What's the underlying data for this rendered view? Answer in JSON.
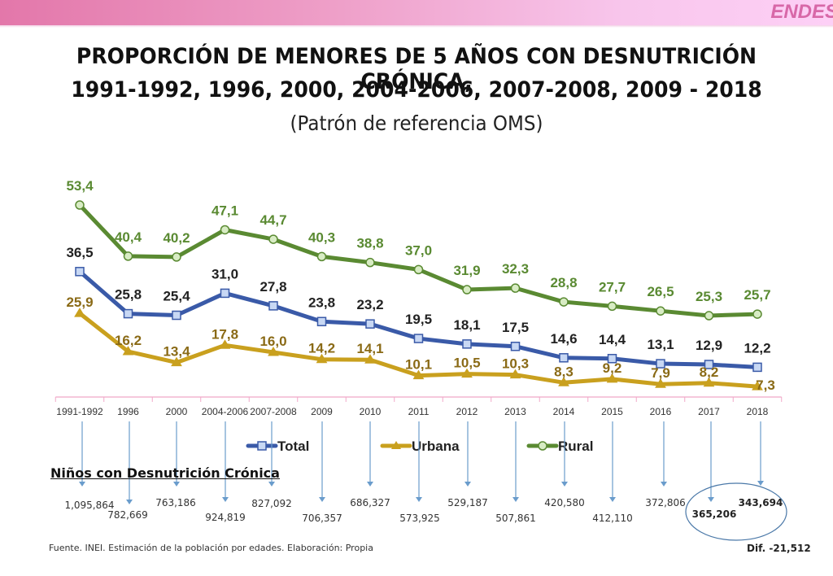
{
  "header": {
    "brand": "ENDES"
  },
  "title": {
    "line1": "PROPORCIÓN DE MENORES DE 5 AÑOS CON DESNUTRICIÓN CRÓNICA,",
    "line2": "1991-1992, 1996, 2000, 2004-2006, 2007-2008, 2009 - 2018",
    "subtitle": "(Patrón de referencia OMS)"
  },
  "colors": {
    "total": "#3a5aa8",
    "urbana": "#c9a01e",
    "rural": "#5a8a32",
    "total_label": "#222222",
    "urbana_label": "#8a6a16",
    "rural_label": "#5a8a32",
    "axis": "#f0a8c8",
    "arrow": "#6a9ccc"
  },
  "chart_data": {
    "type": "line",
    "title": "PROPORCIÓN DE MENORES DE 5 AÑOS CON DESNUTRICIÓN CRÓNICA, 1991-1992, 1996, 2000, 2004-2006, 2007-2008, 2009 - 2018",
    "subtitle": "(Patrón de referencia OMS)",
    "xlabel": "",
    "ylabel": "",
    "grid": false,
    "legend_position": "bottom",
    "categories": [
      "1991-1992",
      "1996",
      "2000",
      "2004-2006",
      "2007-2008",
      "2009",
      "2010",
      "2011",
      "2012",
      "2013",
      "2014",
      "2015",
      "2016",
      "2017",
      "2018"
    ],
    "series": [
      {
        "name": "Total",
        "marker": "square",
        "labels": [
          "36,5",
          "25,8",
          "25,4",
          "31,0",
          "27,8",
          "23,8",
          "23,2",
          "19,5",
          "18,1",
          "17,5",
          "14,6",
          "14,4",
          "13,1",
          "12,9",
          "12,2"
        ],
        "values": [
          36.5,
          25.8,
          25.4,
          31.0,
          27.8,
          23.8,
          23.2,
          19.5,
          18.1,
          17.5,
          14.6,
          14.4,
          13.1,
          12.9,
          12.2
        ]
      },
      {
        "name": "Urbana",
        "marker": "triangle",
        "labels": [
          "25,9",
          "16,2",
          "13,4",
          "17,8",
          "16,0",
          "14,2",
          "14,1",
          "10,1",
          "10,5",
          "10,3",
          "8,3",
          "9,2",
          "7,9",
          "8,2",
          "7,3"
        ],
        "values": [
          25.9,
          16.2,
          13.4,
          17.8,
          16.0,
          14.2,
          14.1,
          10.1,
          10.5,
          10.3,
          8.3,
          9.2,
          7.9,
          8.2,
          7.3
        ]
      },
      {
        "name": "Rural",
        "marker": "circle",
        "labels": [
          "53,4",
          "40,4",
          "40,2",
          "47,1",
          "44,7",
          "40,3",
          "38,8",
          "37,0",
          "31,9",
          "32,3",
          "28,8",
          "27,7",
          "26,5",
          "25,3",
          "25,7"
        ],
        "values": [
          53.4,
          40.4,
          40.2,
          47.1,
          44.7,
          40.3,
          38.8,
          37.0,
          31.9,
          32.3,
          28.8,
          27.7,
          26.5,
          25.3,
          25.7
        ]
      }
    ]
  },
  "children": {
    "section_title": "Niños con Desnutrición Crónica",
    "counts": [
      "1,095,864",
      "782,669",
      "763,186",
      "924,819",
      "827,092",
      "706,357",
      "686,327",
      "573,925",
      "529,187",
      "507,861",
      "420,580",
      "412,110",
      "372,806",
      "365,206",
      "343,694"
    ],
    "highlighted": [
      13,
      14
    ],
    "difference": "Dif. -21,512"
  },
  "footer": {
    "source": "Fuente. INEI. Estimación de la población por edades.    Elaboración: Propia"
  }
}
